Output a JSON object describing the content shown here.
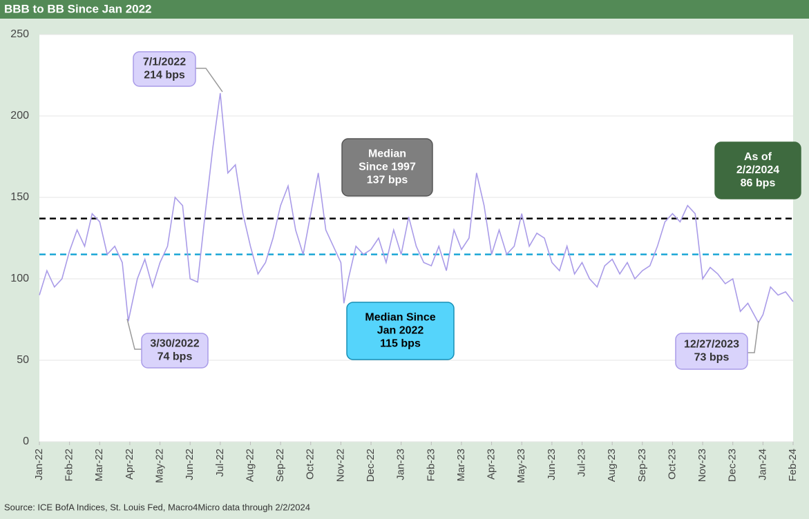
{
  "chart_data": {
    "type": "line",
    "title": "BBB to BB Since Jan 2022",
    "source": "Source: ICE BofA Indices, St. Louis Fed, Macro4Micro      data through 2/2/2024",
    "x": [
      0,
      0.25,
      0.5,
      0.75,
      1,
      1.25,
      1.5,
      1.75,
      2,
      2.25,
      2.5,
      2.75,
      2.95,
      3.25,
      3.5,
      3.75,
      4,
      4.25,
      4.5,
      4.75,
      5,
      5.25,
      5.5,
      5.75,
      6,
      6.25,
      6.5,
      6.75,
      7,
      7.25,
      7.5,
      7.75,
      8,
      8.25,
      8.5,
      8.75,
      9,
      9.25,
      9.5,
      9.75,
      10,
      10.1,
      10.25,
      10.5,
      10.75,
      11,
      11.25,
      11.5,
      11.75,
      12,
      12.25,
      12.5,
      12.75,
      13,
      13.25,
      13.5,
      13.75,
      14,
      14.25,
      14.5,
      14.75,
      15,
      15.25,
      15.5,
      15.75,
      16,
      16.25,
      16.5,
      16.75,
      17,
      17.25,
      17.5,
      17.75,
      18,
      18.25,
      18.5,
      18.75,
      19,
      19.25,
      19.5,
      19.75,
      20,
      20.25,
      20.5,
      20.75,
      21,
      21.25,
      21.5,
      21.75,
      22,
      22.25,
      22.5,
      22.75,
      23,
      23.25,
      23.5,
      23.85,
      24,
      24.25,
      24.5,
      24.75,
      25
    ],
    "series": [
      {
        "name": "BBB to BB",
        "color": "#a99be8",
        "values": [
          90,
          105,
          95,
          100,
          117,
          130,
          120,
          140,
          135,
          115,
          120,
          110,
          74,
          100,
          112,
          95,
          110,
          120,
          150,
          145,
          100,
          98,
          140,
          180,
          214,
          165,
          170,
          140,
          120,
          103,
          110,
          125,
          145,
          157,
          130,
          115,
          140,
          165,
          130,
          120,
          110,
          85,
          100,
          120,
          115,
          118,
          125,
          110,
          130,
          115,
          138,
          120,
          110,
          108,
          120,
          105,
          130,
          118,
          125,
          165,
          145,
          115,
          130,
          115,
          120,
          140,
          120,
          128,
          125,
          110,
          105,
          120,
          103,
          110,
          100,
          95,
          108,
          112,
          103,
          110,
          100,
          105,
          108,
          120,
          135,
          140,
          135,
          145,
          140,
          100,
          107,
          103,
          97,
          100,
          80,
          85,
          73,
          78,
          95,
          90,
          92,
          86
        ]
      }
    ],
    "xlim": [
      0,
      25
    ],
    "xticks": [
      {
        "value": 0,
        "label": "Jan-22"
      },
      {
        "value": 1,
        "label": "Feb-22"
      },
      {
        "value": 2,
        "label": "Mar-22"
      },
      {
        "value": 3,
        "label": "Apr-22"
      },
      {
        "value": 4,
        "label": "May-22"
      },
      {
        "value": 5,
        "label": "Jun-22"
      },
      {
        "value": 6,
        "label": "Jul-22"
      },
      {
        "value": 7,
        "label": "Aug-22"
      },
      {
        "value": 8,
        "label": "Sep-22"
      },
      {
        "value": 9,
        "label": "Oct-22"
      },
      {
        "value": 10,
        "label": "Nov-22"
      },
      {
        "value": 11,
        "label": "Dec-22"
      },
      {
        "value": 12,
        "label": "Jan-23"
      },
      {
        "value": 13,
        "label": "Feb-23"
      },
      {
        "value": 14,
        "label": "Mar-23"
      },
      {
        "value": 15,
        "label": "Apr-23"
      },
      {
        "value": 16,
        "label": "May-23"
      },
      {
        "value": 17,
        "label": "Jun-23"
      },
      {
        "value": 18,
        "label": "Jul-23"
      },
      {
        "value": 19,
        "label": "Aug-23"
      },
      {
        "value": 20,
        "label": "Sep-23"
      },
      {
        "value": 21,
        "label": "Oct-23"
      },
      {
        "value": 22,
        "label": "Nov-23"
      },
      {
        "value": 23,
        "label": "Dec-23"
      },
      {
        "value": 24,
        "label": "Jan-24"
      },
      {
        "value": 25,
        "label": "Feb-24"
      }
    ],
    "ylim": [
      0,
      250
    ],
    "yticks": [
      0,
      50,
      100,
      150,
      200,
      250
    ],
    "grid": true,
    "hlines": [
      {
        "value": 137,
        "color": "#000000"
      },
      {
        "value": 115,
        "color": "#1ba6d6"
      }
    ],
    "annotations": [
      {
        "lines": [
          "7/1/2022",
          "214 bps"
        ]
      },
      {
        "lines": [
          "3/30/2022",
          "74 bps"
        ]
      },
      {
        "lines": [
          "Median",
          "Since 1997",
          "137 bps"
        ]
      },
      {
        "lines": [
          "Median Since",
          "Jan 2022",
          "115 bps"
        ]
      },
      {
        "lines": [
          "As of",
          "2/2/2024",
          "86 bps"
        ]
      },
      {
        "lines": [
          "12/27/2023",
          "73 bps"
        ]
      }
    ]
  }
}
